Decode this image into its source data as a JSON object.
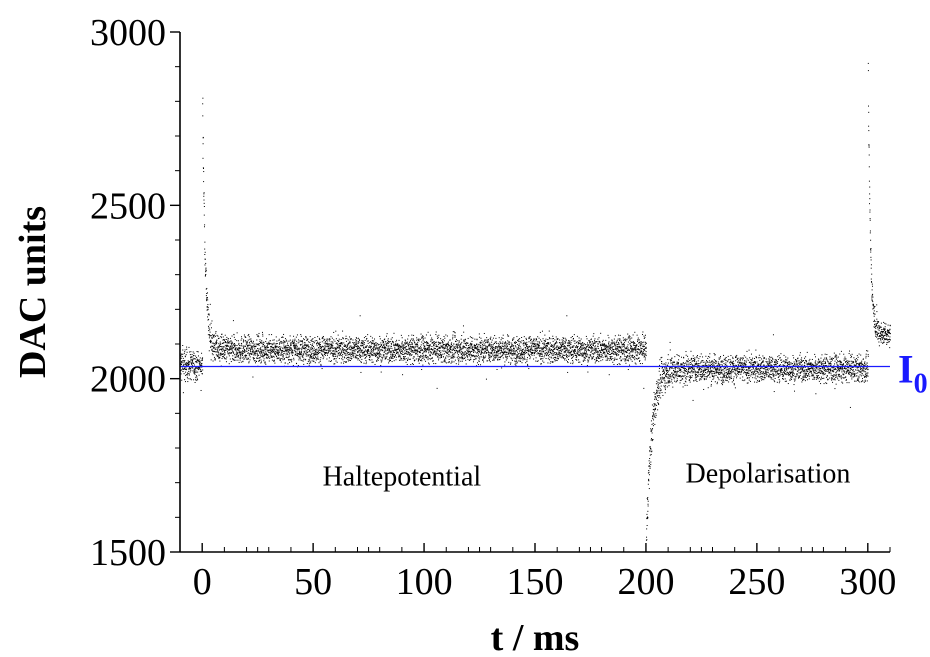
{
  "chart_data": {
    "type": "scatter",
    "title": "",
    "xlabel": "t / ms",
    "ylabel": "DAC units",
    "xlim": [
      -10,
      310
    ],
    "ylim": [
      1500,
      3000
    ],
    "x_ticks": [
      "0",
      "50",
      "100",
      "150",
      "200",
      "250",
      "300"
    ],
    "x_tick_values": [
      0,
      50,
      100,
      150,
      200,
      250,
      300
    ],
    "y_ticks": [
      "1500",
      "2000",
      "2500",
      "3000"
    ],
    "y_tick_values": [
      1500,
      2000,
      2500,
      3000
    ],
    "grid": false,
    "marker_color": "#000000",
    "reference_line": {
      "value": 2035,
      "label": "I",
      "label_subscript": "0",
      "color": "#1a1aff"
    },
    "annotations": [
      "Haltepotential",
      "Depolarisation"
    ],
    "segments": [
      {
        "t_start": -10,
        "t_end": 0,
        "baseline": 2040,
        "spike": 2040,
        "tau": 1,
        "noise_sd": 32
      },
      {
        "t_start": 0,
        "t_end": 200,
        "baseline": 2085,
        "spike": 2800,
        "tau": 1.2,
        "noise_sd": 35
      },
      {
        "t_start": 200,
        "t_end": 300,
        "baseline": 2030,
        "spike": 1540,
        "tau": 2.5,
        "noise_sd": 35
      },
      {
        "t_start": 300,
        "t_end": 310,
        "baseline": 2130,
        "spike": 2860,
        "tau": 1,
        "noise_sd": 28
      }
    ]
  }
}
